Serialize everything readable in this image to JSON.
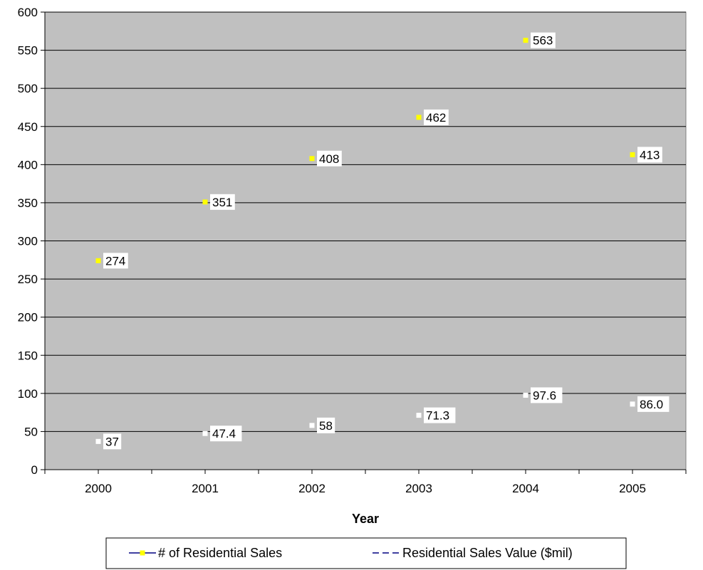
{
  "chart_data": {
    "type": "scatter",
    "categories": [
      "2000",
      "2001",
      "2002",
      "2003",
      "2004",
      "2005"
    ],
    "series": [
      {
        "name": "# of Residential Sales",
        "marker_color": "#ffff00",
        "line_color": "#000080",
        "values": [
          274,
          351,
          408,
          462,
          563,
          413
        ],
        "labels": [
          "274",
          "351",
          "408",
          "462",
          "563",
          "413"
        ]
      },
      {
        "name": "Residential Sales Value ($mil)",
        "marker_color": "#ffffff",
        "line_color": "#000080",
        "values": [
          37,
          47.4,
          58,
          71.3,
          97.6,
          86.0
        ],
        "labels": [
          "37",
          "47.4",
          "58",
          "71.3",
          "97.6",
          "86.0"
        ]
      }
    ],
    "xlabel": "Year",
    "ylabel": "",
    "ylim": [
      0,
      600
    ],
    "yticks": [
      "0",
      "50",
      "100",
      "150",
      "200",
      "250",
      "300",
      "350",
      "400",
      "450",
      "500",
      "550",
      "600"
    ],
    "grid": true,
    "legend_position": "bottom",
    "plot_background": "#c0c0c0"
  }
}
